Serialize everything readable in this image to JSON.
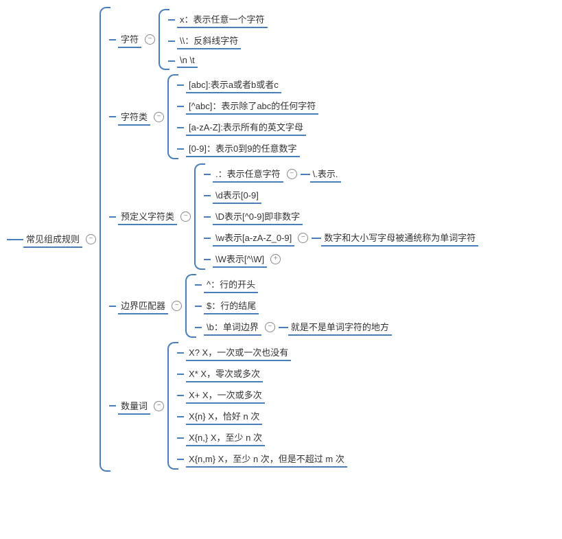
{
  "colors": {
    "line": "#4a7ebb",
    "text": "#333333",
    "background": "#ffffff",
    "toggle_border": "#888888"
  },
  "typography": {
    "font_family": "Microsoft YaHei",
    "font_size_pt": 10
  },
  "diagram": {
    "type": "tree",
    "root": "常见组成规则",
    "toggle_minus": "−",
    "toggle_plus": "+",
    "branches": [
      {
        "label": "字符",
        "children": [
          {
            "text": "x：表示任意一个字符"
          },
          {
            "text": "\\\\：反斜线字符"
          },
          {
            "text": "\\n        \\t"
          }
        ]
      },
      {
        "label": "字符类",
        "children": [
          {
            "text": "[abc]:表示a或者b或者c"
          },
          {
            "text": "[^abc]：表示除了abc的任何字符"
          },
          {
            "text": "[a-zA-Z]:表示所有的英文字母"
          },
          {
            "text": "[0-9]：表示0到9的任意数字"
          }
        ]
      },
      {
        "label": "预定义字符类",
        "children": [
          {
            "text": ".：表示任意字符",
            "sub": "\\.表示.",
            "sub_toggle": "minus"
          },
          {
            "text": "\\d表示[0-9]"
          },
          {
            "text": "\\D表示[^0-9]即非数字"
          },
          {
            "text": "\\w表示[a-zA-Z_0-9]",
            "sub": "数字和大小写字母被通统称为单词字符",
            "sub_toggle": "minus"
          },
          {
            "text": "\\W表示[^\\W]",
            "sub_toggle_only": "plus"
          }
        ]
      },
      {
        "label": "边界匹配器",
        "children": [
          {
            "text": "^：行的开头"
          },
          {
            "text": "$：行的结尾"
          },
          {
            "text": "\\b：单词边界",
            "sub": "就是不是单词字符的地方",
            "sub_toggle": "minus"
          }
        ]
      },
      {
        "label": "数量词",
        "children": [
          {
            "text": "X? X，一次或一次也没有"
          },
          {
            "text": "X* X，零次或多次"
          },
          {
            "text": "X+ X，一次或多次"
          },
          {
            "text": "X{n} X，恰好 n 次"
          },
          {
            "text": "X{n,} X，至少 n 次"
          },
          {
            "text": "X{n,m} X，至少 n 次，但是不超过 m 次"
          }
        ]
      }
    ]
  }
}
